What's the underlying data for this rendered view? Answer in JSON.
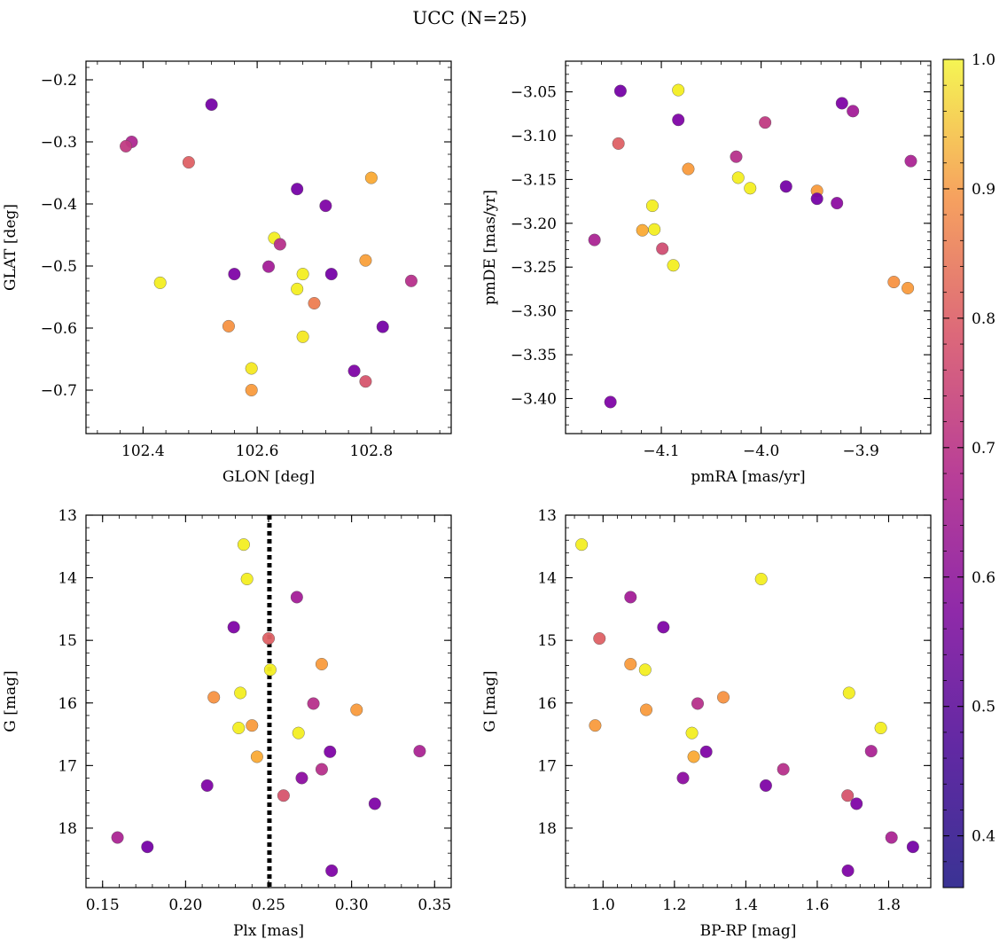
{
  "figure": {
    "title": "UCC (N=25)"
  },
  "colorbar": {
    "min": 0.36,
    "max": 1.0,
    "colormap": "plasma",
    "ticks": [
      0.4,
      0.5,
      0.6,
      0.7,
      0.8,
      0.9,
      1.0
    ],
    "tick_labels": [
      "0.4",
      "0.5",
      "0.6",
      "0.7",
      "0.8",
      "0.9",
      "1.0"
    ]
  },
  "chart_data": [
    {
      "type": "scatter",
      "title": "",
      "xlabel": "GLON [deg]",
      "ylabel": "GLAT [deg]",
      "xlim": [
        102.3,
        102.94
      ],
      "ylim": [
        -0.77,
        -0.17
      ],
      "y_inverted": false,
      "xticks": [
        102.4,
        102.6,
        102.8
      ],
      "xtick_labels": [
        "102.4",
        "102.6",
        "102.8"
      ],
      "x_minor_step": 0.04,
      "yticks": [
        -0.7,
        -0.6,
        -0.5,
        -0.4,
        -0.3,
        -0.2
      ],
      "ytick_labels": [
        "−0.7",
        "−0.6",
        "−0.5",
        "−0.4",
        "−0.3",
        "−0.2"
      ],
      "y_minor_step": 0.02,
      "grid": false,
      "points": [
        {
          "x": 102.52,
          "y": -0.24,
          "c": 0.4
        },
        {
          "x": 102.38,
          "y": -0.3,
          "c": 0.53
        },
        {
          "x": 102.37,
          "y": -0.307,
          "c": 0.58
        },
        {
          "x": 102.48,
          "y": -0.333,
          "c": 0.68
        },
        {
          "x": 102.8,
          "y": -0.358,
          "c": 0.85
        },
        {
          "x": 102.67,
          "y": -0.376,
          "c": 0.4
        },
        {
          "x": 102.72,
          "y": -0.403,
          "c": 0.42
        },
        {
          "x": 102.63,
          "y": -0.455,
          "c": 0.98
        },
        {
          "x": 102.64,
          "y": -0.465,
          "c": 0.55
        },
        {
          "x": 102.79,
          "y": -0.491,
          "c": 0.83
        },
        {
          "x": 102.62,
          "y": -0.501,
          "c": 0.5
        },
        {
          "x": 102.56,
          "y": -0.513,
          "c": 0.42
        },
        {
          "x": 102.68,
          "y": -0.513,
          "c": 0.98
        },
        {
          "x": 102.73,
          "y": -0.513,
          "c": 0.4
        },
        {
          "x": 102.87,
          "y": -0.524,
          "c": 0.55
        },
        {
          "x": 102.43,
          "y": -0.527,
          "c": 0.98
        },
        {
          "x": 102.67,
          "y": -0.537,
          "c": 0.98
        },
        {
          "x": 102.7,
          "y": -0.56,
          "c": 0.75
        },
        {
          "x": 102.55,
          "y": -0.597,
          "c": 0.8
        },
        {
          "x": 102.82,
          "y": -0.598,
          "c": 0.4
        },
        {
          "x": 102.68,
          "y": -0.614,
          "c": 0.97
        },
        {
          "x": 102.59,
          "y": -0.665,
          "c": 0.97
        },
        {
          "x": 102.77,
          "y": -0.669,
          "c": 0.42
        },
        {
          "x": 102.79,
          "y": -0.686,
          "c": 0.65
        },
        {
          "x": 102.59,
          "y": -0.7,
          "c": 0.82
        }
      ]
    },
    {
      "type": "scatter",
      "title": "",
      "xlabel": "pmRA [mas/yr]",
      "ylabel": "pmDE [mas/yr]",
      "xlim": [
        -4.196,
        -3.83
      ],
      "ylim": [
        -3.44,
        -3.015
      ],
      "y_inverted": false,
      "xticks": [
        -4.1,
        -4.0,
        -3.9
      ],
      "xtick_labels": [
        "−4.1",
        "−4.0",
        "−3.9"
      ],
      "x_minor_step": 0.02,
      "yticks": [
        -3.4,
        -3.35,
        -3.3,
        -3.25,
        -3.2,
        -3.15,
        -3.1,
        -3.05
      ],
      "ytick_labels": [
        "−3.40",
        "−3.35",
        "−3.30",
        "−3.25",
        "−3.20",
        "−3.15",
        "−3.10",
        "−3.05"
      ],
      "y_minor_step": 0.01,
      "grid": false,
      "points": [
        {
          "x": -4.141,
          "y": -3.049,
          "c": 0.4
        },
        {
          "x": -4.083,
          "y": -3.048,
          "c": 0.98
        },
        {
          "x": -3.919,
          "y": -3.063,
          "c": 0.42
        },
        {
          "x": -3.908,
          "y": -3.072,
          "c": 0.5
        },
        {
          "x": -4.083,
          "y": -3.082,
          "c": 0.42
        },
        {
          "x": -3.996,
          "y": -3.085,
          "c": 0.58
        },
        {
          "x": -4.143,
          "y": -3.109,
          "c": 0.68
        },
        {
          "x": -4.025,
          "y": -3.124,
          "c": 0.55
        },
        {
          "x": -3.85,
          "y": -3.129,
          "c": 0.52
        },
        {
          "x": -4.073,
          "y": -3.138,
          "c": 0.82
        },
        {
          "x": -4.023,
          "y": -3.148,
          "c": 0.98
        },
        {
          "x": -4.011,
          "y": -3.16,
          "c": 0.98
        },
        {
          "x": -3.975,
          "y": -3.158,
          "c": 0.4
        },
        {
          "x": -3.944,
          "y": -3.163,
          "c": 0.82
        },
        {
          "x": -3.944,
          "y": -3.172,
          "c": 0.4
        },
        {
          "x": -3.924,
          "y": -3.177,
          "c": 0.45
        },
        {
          "x": -4.109,
          "y": -3.18,
          "c": 0.98
        },
        {
          "x": -4.119,
          "y": -3.208,
          "c": 0.85
        },
        {
          "x": -4.107,
          "y": -3.207,
          "c": 0.98
        },
        {
          "x": -4.167,
          "y": -3.219,
          "c": 0.52
        },
        {
          "x": -4.099,
          "y": -3.229,
          "c": 0.63
        },
        {
          "x": -4.088,
          "y": -3.248,
          "c": 0.98
        },
        {
          "x": -3.867,
          "y": -3.267,
          "c": 0.8
        },
        {
          "x": -3.853,
          "y": -3.274,
          "c": 0.82
        },
        {
          "x": -4.151,
          "y": -3.404,
          "c": 0.42
        }
      ]
    },
    {
      "type": "scatter",
      "title": "",
      "xlabel": "Plx [mas]",
      "ylabel": "G [mag]",
      "xlim": [
        0.14,
        0.36
      ],
      "ylim": [
        18.95,
        13.0
      ],
      "y_inverted": true,
      "xticks": [
        0.15,
        0.2,
        0.25,
        0.3,
        0.35
      ],
      "xtick_labels": [
        "0.15",
        "0.20",
        "0.25",
        "0.30",
        "0.35"
      ],
      "x_minor_step": 0.01,
      "yticks": [
        13,
        14,
        15,
        16,
        17,
        18
      ],
      "ytick_labels": [
        "13",
        "14",
        "15",
        "16",
        "17",
        "18"
      ],
      "y_minor_step": 0.2,
      "grid": false,
      "vline": {
        "x": 0.2505,
        "style": "dotted"
      },
      "points": [
        {
          "x": 0.235,
          "y": 13.47,
          "c": 0.98
        },
        {
          "x": 0.237,
          "y": 14.02,
          "c": 0.98
        },
        {
          "x": 0.267,
          "y": 14.31,
          "c": 0.5
        },
        {
          "x": 0.229,
          "y": 14.79,
          "c": 0.42
        },
        {
          "x": 0.25,
          "y": 14.97,
          "c": 0.68
        },
        {
          "x": 0.282,
          "y": 15.38,
          "c": 0.82
        },
        {
          "x": 0.251,
          "y": 15.47,
          "c": 0.98
        },
        {
          "x": 0.233,
          "y": 15.84,
          "c": 0.98
        },
        {
          "x": 0.217,
          "y": 15.91,
          "c": 0.8
        },
        {
          "x": 0.277,
          "y": 16.01,
          "c": 0.55
        },
        {
          "x": 0.303,
          "y": 16.11,
          "c": 0.82
        },
        {
          "x": 0.24,
          "y": 16.36,
          "c": 0.82
        },
        {
          "x": 0.232,
          "y": 16.4,
          "c": 0.98
        },
        {
          "x": 0.268,
          "y": 16.48,
          "c": 0.98
        },
        {
          "x": 0.287,
          "y": 16.78,
          "c": 0.42
        },
        {
          "x": 0.341,
          "y": 16.77,
          "c": 0.52
        },
        {
          "x": 0.243,
          "y": 16.86,
          "c": 0.85
        },
        {
          "x": 0.282,
          "y": 17.06,
          "c": 0.55
        },
        {
          "x": 0.27,
          "y": 17.2,
          "c": 0.45
        },
        {
          "x": 0.213,
          "y": 17.32,
          "c": 0.42
        },
        {
          "x": 0.259,
          "y": 17.48,
          "c": 0.65
        },
        {
          "x": 0.314,
          "y": 17.61,
          "c": 0.42
        },
        {
          "x": 0.159,
          "y": 18.15,
          "c": 0.52
        },
        {
          "x": 0.177,
          "y": 18.3,
          "c": 0.4
        },
        {
          "x": 0.288,
          "y": 18.68,
          "c": 0.42
        }
      ]
    },
    {
      "type": "scatter",
      "title": "",
      "xlabel": "BP-RP [mag]",
      "ylabel": "G [mag]",
      "xlim": [
        0.895,
        1.918
      ],
      "ylim": [
        18.95,
        13.0
      ],
      "y_inverted": true,
      "xticks": [
        1.0,
        1.2,
        1.4,
        1.6,
        1.8
      ],
      "xtick_labels": [
        "1.0",
        "1.2",
        "1.4",
        "1.6",
        "1.8"
      ],
      "x_minor_step": 0.04,
      "yticks": [
        13,
        14,
        15,
        16,
        17,
        18
      ],
      "ytick_labels": [
        "13",
        "14",
        "15",
        "16",
        "17",
        "18"
      ],
      "y_minor_step": 0.2,
      "grid": false,
      "points": [
        {
          "x": 0.94,
          "y": 13.47,
          "c": 0.98
        },
        {
          "x": 1.443,
          "y": 14.02,
          "c": 0.98
        },
        {
          "x": 1.077,
          "y": 14.31,
          "c": 0.5
        },
        {
          "x": 1.169,
          "y": 14.79,
          "c": 0.42
        },
        {
          "x": 0.99,
          "y": 14.97,
          "c": 0.68
        },
        {
          "x": 1.077,
          "y": 15.38,
          "c": 0.82
        },
        {
          "x": 1.118,
          "y": 15.47,
          "c": 0.98
        },
        {
          "x": 1.689,
          "y": 15.84,
          "c": 0.98
        },
        {
          "x": 1.337,
          "y": 15.91,
          "c": 0.8
        },
        {
          "x": 1.265,
          "y": 16.01,
          "c": 0.55
        },
        {
          "x": 1.121,
          "y": 16.11,
          "c": 0.82
        },
        {
          "x": 0.978,
          "y": 16.36,
          "c": 0.82
        },
        {
          "x": 1.778,
          "y": 16.4,
          "c": 0.98
        },
        {
          "x": 1.249,
          "y": 16.48,
          "c": 0.98
        },
        {
          "x": 1.289,
          "y": 16.78,
          "c": 0.42
        },
        {
          "x": 1.751,
          "y": 16.77,
          "c": 0.52
        },
        {
          "x": 1.254,
          "y": 16.86,
          "c": 0.85
        },
        {
          "x": 1.505,
          "y": 17.06,
          "c": 0.55
        },
        {
          "x": 1.224,
          "y": 17.2,
          "c": 0.45
        },
        {
          "x": 1.456,
          "y": 17.32,
          "c": 0.42
        },
        {
          "x": 1.685,
          "y": 17.48,
          "c": 0.65
        },
        {
          "x": 1.71,
          "y": 17.61,
          "c": 0.42
        },
        {
          "x": 1.808,
          "y": 18.15,
          "c": 0.52
        },
        {
          "x": 1.868,
          "y": 18.3,
          "c": 0.4
        },
        {
          "x": 1.686,
          "y": 18.68,
          "c": 0.42
        }
      ]
    }
  ]
}
